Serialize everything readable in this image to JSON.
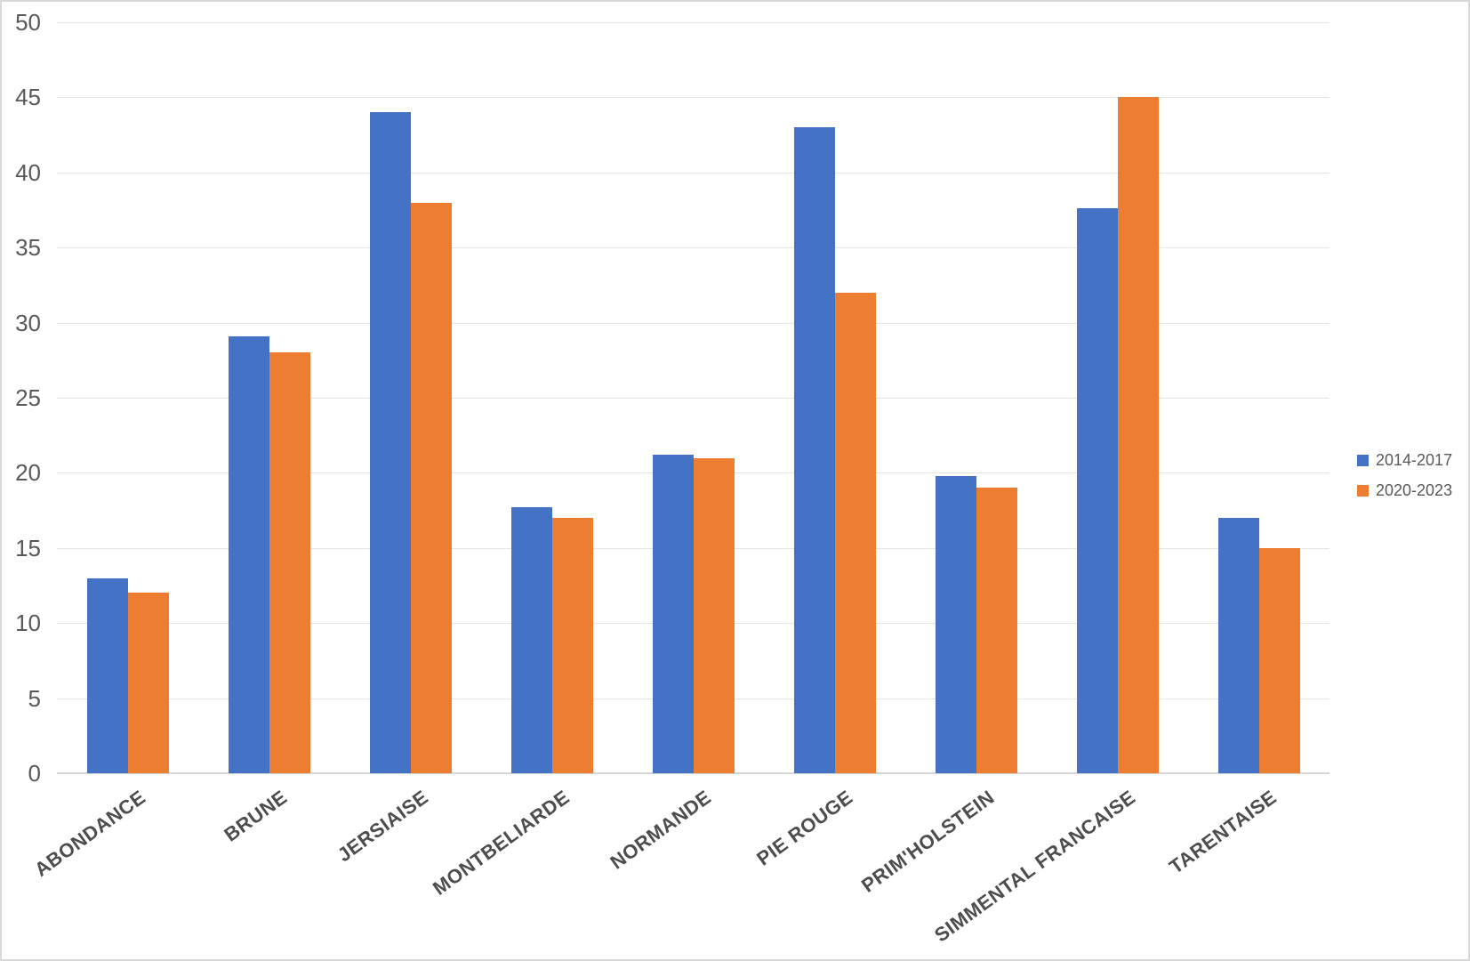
{
  "chart_data": {
    "type": "bar",
    "title": "",
    "xlabel": "",
    "ylabel": "",
    "categories": [
      "ABONDANCE",
      "BRUNE",
      "JERSIAISE",
      "MONTBELIARDE",
      "NORMANDE",
      "PIE ROUGE",
      "PRIM'HOLSTEIN",
      "SIMMENTAL FRANCAISE",
      "TARENTAISE"
    ],
    "series": [
      {
        "name": "2014-2017",
        "color": "#4472C4",
        "values": [
          13,
          29.1,
          44,
          17.7,
          21.2,
          43,
          19.8,
          37.6,
          17
        ]
      },
      {
        "name": "2020-2023",
        "color": "#ED7D31",
        "values": [
          12,
          28,
          38,
          17,
          21,
          32,
          19,
          45,
          15
        ]
      }
    ],
    "ylim": [
      0,
      50
    ],
    "ytick_step": 5,
    "yticks": [
      0,
      5,
      10,
      15,
      20,
      25,
      30,
      35,
      40,
      45,
      50
    ],
    "grid": true,
    "legend_position": "right"
  },
  "colors": {
    "series_blue": "#4472C4",
    "series_orange": "#ED7D31",
    "gridline": "#E5E5E5",
    "axis_line": "#D6D6D6",
    "tick_text": "#595959",
    "category_text": "#4D4D4D",
    "border": "#D9D9D9"
  }
}
